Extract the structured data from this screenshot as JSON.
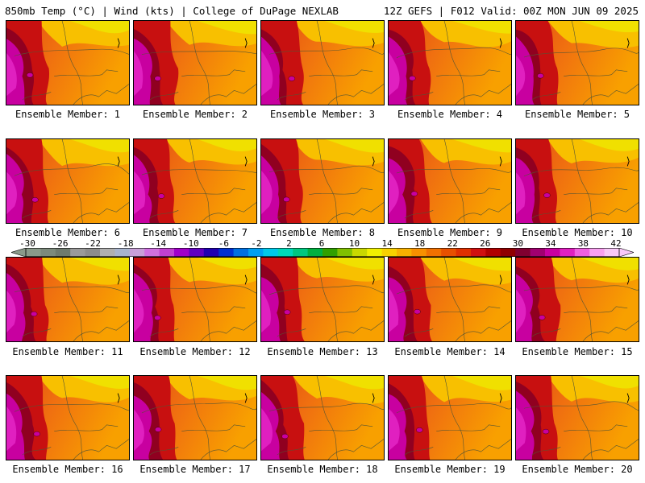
{
  "header": {
    "left": "850mb Temp (°C) | Wind (kts) | College of DuPage NEXLAB",
    "right": "12Z GEFS | F012 Valid: 00Z MON JUN 09 2025"
  },
  "panels": [
    {
      "label": "Ensemble Member: 1"
    },
    {
      "label": "Ensemble Member: 2"
    },
    {
      "label": "Ensemble Member: 3"
    },
    {
      "label": "Ensemble Member: 4"
    },
    {
      "label": "Ensemble Member: 5"
    },
    {
      "label": "Ensemble Member: 6"
    },
    {
      "label": "Ensemble Member: 7"
    },
    {
      "label": "Ensemble Member: 8"
    },
    {
      "label": "Ensemble Member: 9"
    },
    {
      "label": "Ensemble Member: 10"
    },
    {
      "label": "Ensemble Member: 11"
    },
    {
      "label": "Ensemble Member: 12"
    },
    {
      "label": "Ensemble Member: 13"
    },
    {
      "label": "Ensemble Member: 14"
    },
    {
      "label": "Ensemble Member: 15"
    },
    {
      "label": "Ensemble Member: 16"
    },
    {
      "label": "Ensemble Member: 17"
    },
    {
      "label": "Ensemble Member: 18"
    },
    {
      "label": "Ensemble Member: 19"
    },
    {
      "label": "Ensemble Member: 20"
    }
  ],
  "colorbar": {
    "ticks": [
      "-30",
      "-26",
      "-22",
      "-18",
      "-14",
      "-10",
      "-6",
      "-2",
      "2",
      "6",
      "10",
      "14",
      "18",
      "22",
      "26",
      "30",
      "34",
      "38",
      "42"
    ],
    "colors": [
      "#8a9a8a",
      "#7c8a7c",
      "#6e7a6e",
      "#9a9a9a",
      "#8c8c8c",
      "#b0b0b0",
      "#a8b4cc",
      "#c8a0d8",
      "#d070e0",
      "#c040d0",
      "#a000c8",
      "#6000c0",
      "#2000b0",
      "#0030d0",
      "#0070e0",
      "#00a0f0",
      "#00c8e8",
      "#00d8b8",
      "#00c880",
      "#00b040",
      "#30a000",
      "#80c000",
      "#c8d800",
      "#f0f000",
      "#f8d000",
      "#f8b000",
      "#f89000",
      "#f07000",
      "#e85000",
      "#e03000",
      "#d01010",
      "#b00000",
      "#900000",
      "#800030",
      "#a00070",
      "#c800a0",
      "#e020c0",
      "#f060e0",
      "#f8a0f0",
      "#f8c8f8"
    ]
  }
}
